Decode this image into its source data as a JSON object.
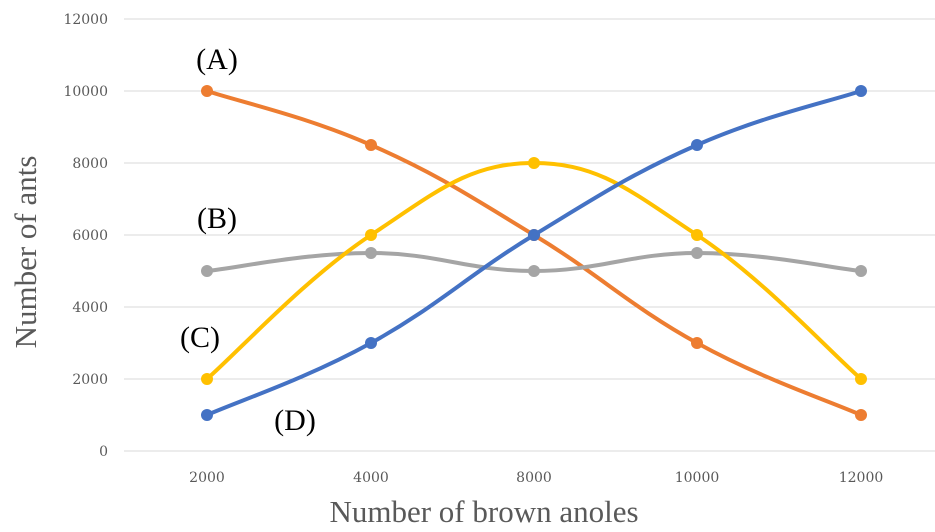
{
  "chart_data": {
    "type": "line",
    "title": "",
    "xlabel": "Number of brown anoles",
    "ylabel": "Number of ants",
    "categories": [
      "2000",
      "4000",
      "8000",
      "10000",
      "12000"
    ],
    "ylim": [
      0,
      12000
    ],
    "yticks": [
      0,
      2000,
      4000,
      6000,
      8000,
      10000,
      12000
    ],
    "grid": true,
    "legend": "none",
    "smooth": true,
    "series": [
      {
        "name": "(A)",
        "color": "#ED7D31",
        "values": [
          10000,
          8500,
          6000,
          3000,
          1000
        ]
      },
      {
        "name": "(B)",
        "color": "#A5A5A5",
        "values": [
          5000,
          5500,
          5000,
          5500,
          5000
        ]
      },
      {
        "name": "(C)",
        "color": "#FFC000",
        "values": [
          2000,
          6000,
          8000,
          6000,
          2000
        ]
      },
      {
        "name": "(D)",
        "color": "#4472C4",
        "values": [
          1000,
          3000,
          6000,
          8500,
          10000
        ]
      }
    ]
  }
}
